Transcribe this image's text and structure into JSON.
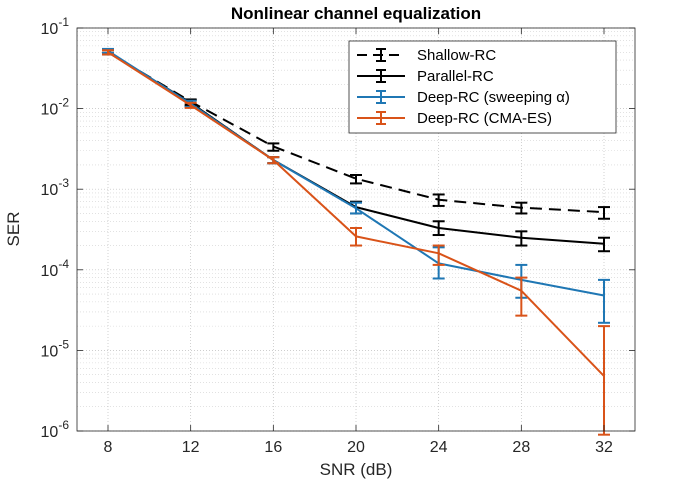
{
  "chart_data": {
    "type": "line",
    "title": "Nonlinear channel equalization",
    "xlabel": "SNR (dB)",
    "ylabel": "SER",
    "x": [
      8,
      12,
      16,
      20,
      24,
      28,
      32
    ],
    "xlim": [
      6.5,
      33.5
    ],
    "xticks": [
      8,
      12,
      16,
      20,
      24,
      28,
      32
    ],
    "yscale": "log",
    "ylim_exp": [
      -6,
      -1
    ],
    "ytick_exps": [
      -6,
      -5,
      -4,
      -3,
      -2,
      -1
    ],
    "ytick_base": "10",
    "grid": true,
    "minor_grid": true,
    "legend_position": "top-right",
    "series": [
      {
        "name": "Shallow-RC",
        "color": "#000000",
        "dash": "dashed",
        "values": [
          0.05,
          0.0122,
          0.0034,
          0.00135,
          0.00074,
          0.00059,
          0.00052
        ],
        "err_low": [
          0.047,
          0.0112,
          0.003,
          0.00118,
          0.00062,
          0.0005,
          0.00043
        ],
        "err_high": [
          0.053,
          0.013,
          0.0037,
          0.0015,
          0.00086,
          0.00068,
          0.0006
        ]
      },
      {
        "name": "Parallel-RC",
        "color": "#000000",
        "dash": "solid",
        "values": [
          0.05,
          0.0118,
          0.0023,
          0.0006,
          0.00033,
          0.00025,
          0.00021
        ],
        "err_low": [
          0.047,
          0.0108,
          0.0021,
          0.0005,
          0.00027,
          0.0002,
          0.00017
        ],
        "err_high": [
          0.053,
          0.0128,
          0.0025,
          0.0007,
          0.0004,
          0.0003,
          0.00025
        ]
      },
      {
        "name": "Deep-RC (sweeping α)",
        "color": "#1F77B4",
        "dash": "solid",
        "values": [
          0.052,
          0.0115,
          0.0023,
          0.00058,
          0.00012,
          7.5e-05,
          4.8e-05
        ],
        "err_low": [
          0.049,
          0.0105,
          0.0021,
          0.0005,
          7.8e-05,
          4.5e-05,
          2.2e-05
        ],
        "err_high": [
          0.055,
          0.0125,
          0.0025,
          0.00068,
          0.00019,
          0.000115,
          7.5e-05
        ]
      },
      {
        "name": "Deep-RC (CMA-ES)",
        "color": "#D95319",
        "dash": "solid",
        "values": [
          0.05,
          0.011,
          0.0023,
          0.00026,
          0.00016,
          5.5e-05,
          4.8e-06
        ],
        "err_low": [
          0.047,
          0.0102,
          0.0021,
          0.0002,
          0.000115,
          2.7e-05,
          9e-07
        ],
        "err_high": [
          0.053,
          0.0118,
          0.0025,
          0.00033,
          0.0002,
          8e-05,
          2e-05
        ]
      }
    ]
  }
}
